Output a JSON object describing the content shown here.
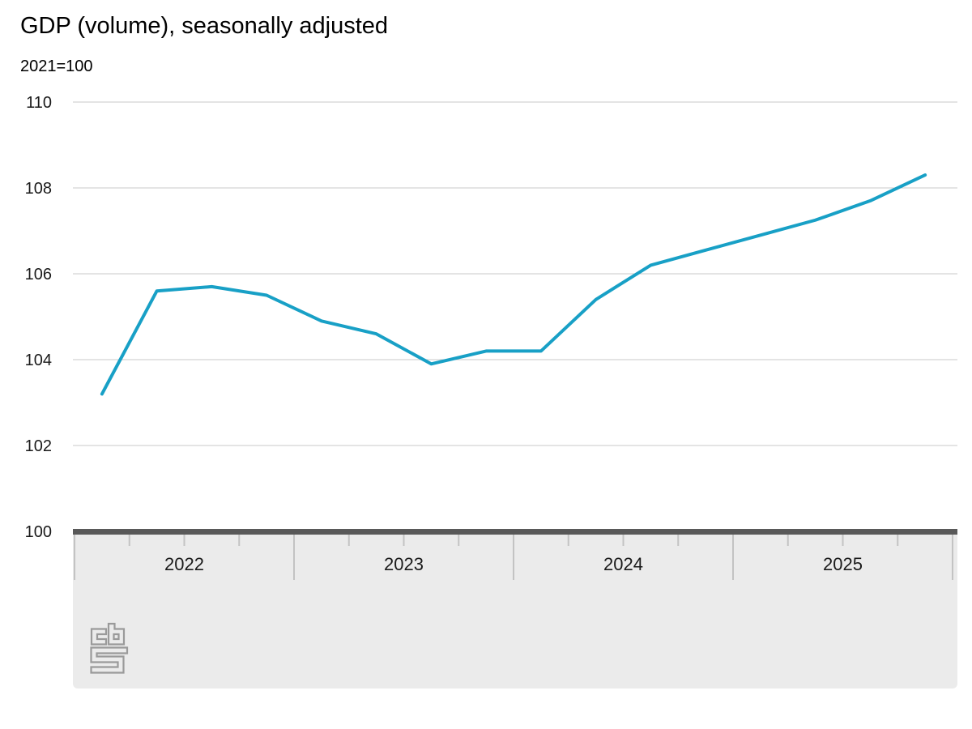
{
  "header": {
    "title": "GDP (volume), seasonally adjusted",
    "subtitle": "2021=100"
  },
  "colors": {
    "line": "#18a0c6",
    "axis_band": "#ebebeb",
    "axis_baseline": "#595959",
    "gridline": "#c8c8c8",
    "tick": "#c3c3c3",
    "text": "#1a1a1a",
    "logo": "#9a9a9a"
  },
  "chart_data": {
    "type": "line",
    "title": "GDP (volume), seasonally adjusted",
    "unit": "2021=100",
    "x": [
      "2022 Q1",
      "2022 Q2",
      "2022 Q3",
      "2022 Q4",
      "2023 Q1",
      "2023 Q2",
      "2023 Q3",
      "2023 Q4",
      "2024 Q1",
      "2024 Q2",
      "2024 Q3",
      "2024 Q4",
      "2025 Q1",
      "2025 Q2",
      "2025 Q3",
      "2025 Q4"
    ],
    "series": [
      {
        "name": "GDP (volume), seasonally adjusted",
        "values": [
          103.2,
          105.6,
          105.7,
          105.5,
          104.9,
          104.6,
          103.9,
          104.2,
          104.2,
          105.4,
          106.2,
          106.55,
          106.9,
          107.25,
          107.7,
          108.3
        ]
      }
    ],
    "y_ticks": [
      110,
      108,
      106,
      104,
      102,
      100
    ],
    "ylim": [
      100,
      110
    ],
    "x_year_labels": [
      "2022",
      "2023",
      "2024",
      "2025"
    ],
    "grid": "horizontal",
    "legend_position": "none"
  },
  "branding": {
    "logo_name": "cbs-logo"
  }
}
